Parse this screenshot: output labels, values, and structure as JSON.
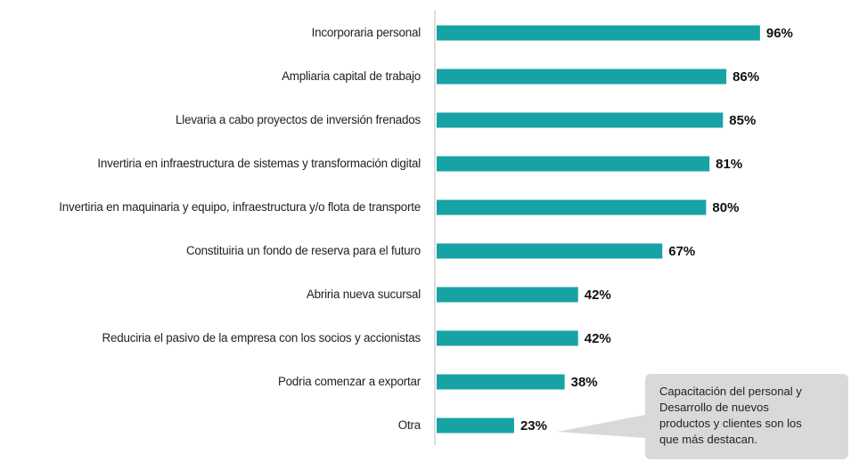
{
  "chart_data": {
    "type": "bar",
    "orientation": "horizontal",
    "categories": [
      "Incorporaria personal",
      "Ampliaria capital de trabajo",
      "Llevaria a cabo proyectos de inversión frenados",
      "Invertiria en infraestructura de sistemas y transformación digital",
      "Invertiria en maquinaria y equipo, infraestructura y/o flota de transporte",
      "Constituiria un fondo de reserva para el futuro",
      "Abriria nueva sucursal",
      "Reduciria el pasivo de la empresa con los socios y accionistas",
      "Podria comenzar a exportar",
      "Otra"
    ],
    "values": [
      96,
      86,
      85,
      81,
      80,
      67,
      42,
      42,
      38,
      23
    ],
    "value_labels": [
      "96%",
      "86%",
      "85%",
      "81%",
      "80%",
      "67%",
      "42%",
      "42%",
      "38%",
      "23%"
    ],
    "color": "#17a3a5",
    "xlim": [
      0,
      100
    ],
    "annotation": [
      "Capacitación del personal y",
      "Desarrollo de nuevos",
      "productos y clientes son los",
      "que más destacan."
    ]
  }
}
